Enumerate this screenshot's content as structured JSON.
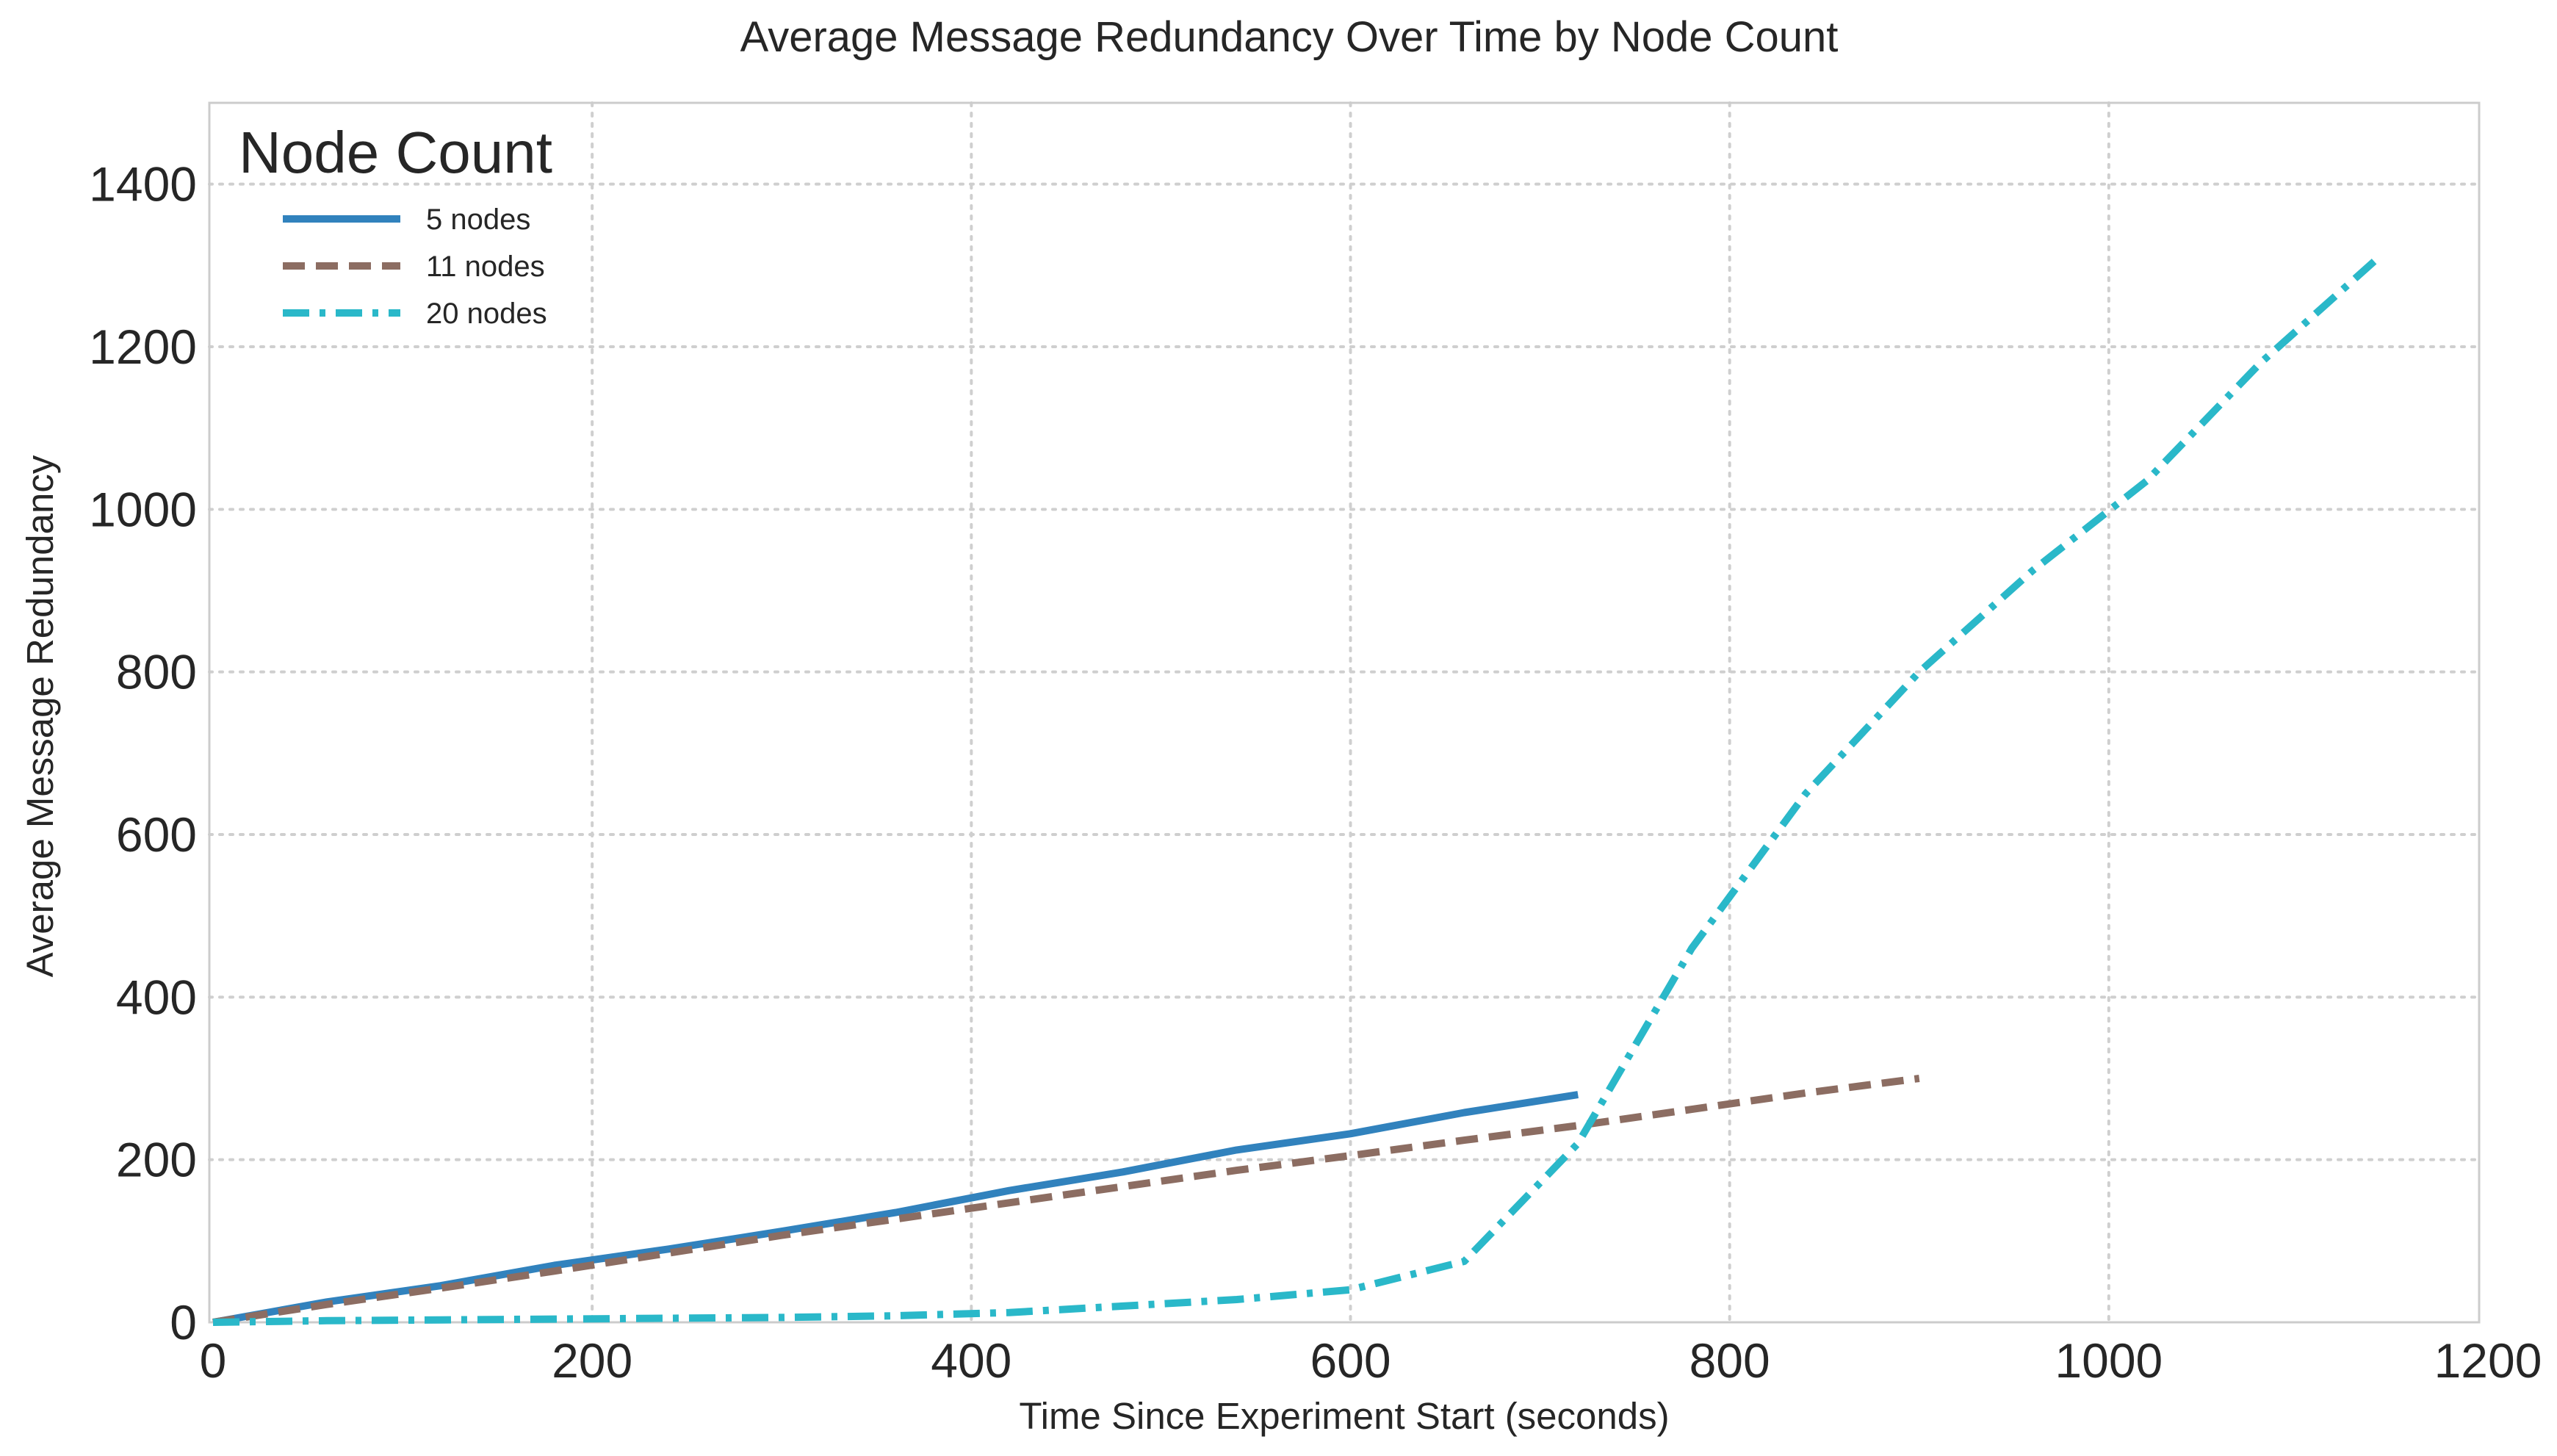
{
  "chart_data": {
    "type": "line",
    "title": "Average Message Redundancy Over Time by Node Count",
    "xlabel": "Time Since Experiment Start (seconds)",
    "ylabel": "Average Message Redundancy",
    "xlim": [
      0,
      1200
    ],
    "ylim": [
      0,
      1500
    ],
    "xticks": [
      0,
      200,
      400,
      600,
      800,
      1000,
      1200
    ],
    "yticks": [
      0,
      200,
      400,
      600,
      800,
      1000,
      1200,
      1400
    ],
    "grid": true,
    "legend": {
      "title": "Node Count",
      "placement": "top-left"
    },
    "series": [
      {
        "name": "5 nodes",
        "color": "#3182bd",
        "dash": "solid",
        "x": [
          0,
          60,
          120,
          180,
          240,
          300,
          360,
          420,
          480,
          540,
          600,
          660,
          720
        ],
        "y": [
          0,
          25,
          45,
          70,
          90,
          112,
          135,
          162,
          185,
          212,
          232,
          258,
          280
        ]
      },
      {
        "name": "11 nodes",
        "color": "#8c6d62",
        "dash": "dashed",
        "x": [
          0,
          60,
          120,
          180,
          240,
          300,
          360,
          420,
          480,
          540,
          600,
          660,
          720,
          780,
          840,
          900
        ],
        "y": [
          0,
          22,
          42,
          63,
          85,
          107,
          127,
          147,
          167,
          187,
          205,
          224,
          242,
          262,
          282,
          300
        ]
      },
      {
        "name": "20 nodes",
        "color": "#2ab8c9",
        "dash": "dashdot",
        "x": [
          0,
          60,
          120,
          180,
          240,
          300,
          360,
          420,
          480,
          540,
          600,
          660,
          720,
          780,
          840,
          900,
          960,
          1020,
          1080,
          1140
        ],
        "y": [
          0,
          2,
          3,
          4,
          5,
          6,
          8,
          12,
          20,
          28,
          40,
          75,
          220,
          460,
          650,
          800,
          925,
          1035,
          1180,
          1305
        ]
      }
    ]
  }
}
